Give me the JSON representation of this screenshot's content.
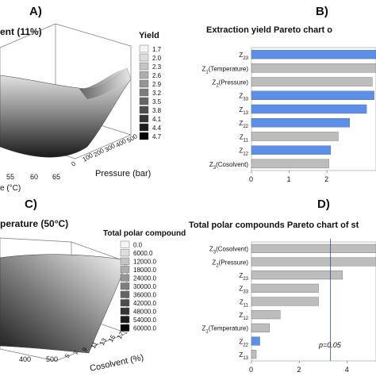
{
  "panels": {
    "A": {
      "letter": "A)",
      "title_fragment": "ent (11%)",
      "legend_title": "Yield",
      "legend_values": [
        "1.7",
        "2.0",
        "2.3",
        "2.6",
        "2.9",
        "3.2",
        "3.5",
        "3.8",
        "4.1",
        "4.4",
        "4.7"
      ],
      "x_ticks": [
        "55",
        "60",
        "65"
      ],
      "x_label_fragment": "e (°C)",
      "y_ticks": [
        "0",
        "100",
        "200",
        "300",
        "400",
        "500"
      ],
      "y_label": "Pressure (bar)"
    },
    "B": {
      "letter": "B)",
      "title": "Extraction yield Pareto chart o"
    },
    "C": {
      "letter": "C)",
      "title_fragment": "perature (50°C)",
      "legend_title": "Total polar compound",
      "legend_values": [
        "0.0",
        "6000.0",
        "12000.0",
        "18000.0",
        "24000.0",
        "30000.0",
        "36000.0",
        "42000.0",
        "48000.0",
        "54000.0",
        "60000.0"
      ],
      "x_ticks": [
        "400",
        "500"
      ],
      "y_ticks": [
        "5",
        "7",
        "9",
        "11",
        "13",
        "15",
        "17"
      ],
      "y_label": "Cosolvent  (%)"
    },
    "D": {
      "letter": "D)",
      "title": "Total polar compounds Pareto chart of st",
      "threshold_label": "p=0.05"
    }
  },
  "chart_data": [
    {
      "type": "bar",
      "orientation": "horizontal",
      "title": "Extraction yield Pareto chart o",
      "categories": [
        "Z23",
        "Z1(Temperature)",
        "Z2(Pressure)",
        "Z33",
        "Z13",
        "Z22",
        "Z11",
        "Z12",
        "Z3(Cosolvent)"
      ],
      "values": [
        3.3,
        3.3,
        3.2,
        3.25,
        3.05,
        2.6,
        2.3,
        2.1,
        2.05
      ],
      "highlight": [
        true,
        false,
        false,
        true,
        true,
        true,
        false,
        true,
        false
      ],
      "xlim": [
        0,
        3.3
      ],
      "x_ticks": [
        "0",
        "1",
        "2"
      ],
      "colors": {
        "highlight": "#5b8fe8",
        "normal": "#bdbdbd"
      }
    },
    {
      "type": "bar",
      "orientation": "horizontal",
      "title": "Total polar compounds Pareto chart of st",
      "categories": [
        "Z3(Cosolvent)",
        "Z2(Pressure)",
        "Z23",
        "Z33",
        "Z11",
        "Z12",
        "Z1(Temperature)",
        "Z22",
        "Z13"
      ],
      "values": [
        5.2,
        5.2,
        3.8,
        2.8,
        2.8,
        1.2,
        0.75,
        0.35,
        0.2
      ],
      "highlight": [
        false,
        false,
        false,
        false,
        false,
        false,
        false,
        true,
        false
      ],
      "xlim": [
        0,
        5.2
      ],
      "x_ticks": [
        "0",
        "2",
        "4"
      ],
      "threshold": 3.3,
      "colors": {
        "highlight": "#5b8fe8",
        "normal": "#bdbdbd"
      }
    }
  ]
}
